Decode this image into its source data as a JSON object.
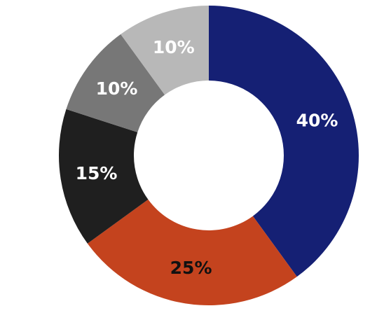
{
  "chart_data": {
    "type": "pie",
    "donut": true,
    "start_angle_deg": 0,
    "direction": "clockwise",
    "legend": "none",
    "slices": [
      {
        "value": 40,
        "label": "40%",
        "color": "#152074",
        "label_color": "#ffffff"
      },
      {
        "value": 25,
        "label": "25%",
        "color": "#c4431e",
        "label_color": "#111111"
      },
      {
        "value": 15,
        "label": "15%",
        "color": "#1f1f1f",
        "label_color": "#ffffff"
      },
      {
        "value": 10,
        "label": "10%",
        "color": "#777777",
        "label_color": "#ffffff"
      },
      {
        "value": 10,
        "label": "10%",
        "color": "#b8b8b8",
        "label_color": "#ffffff"
      }
    ]
  }
}
